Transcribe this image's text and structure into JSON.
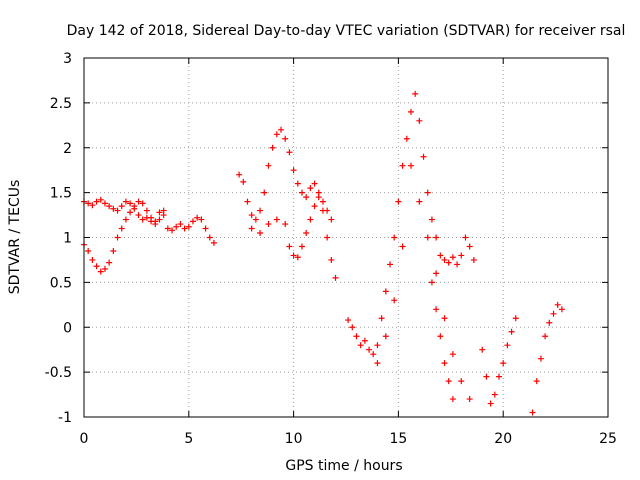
{
  "chart_data": {
    "type": "scatter",
    "title": "Day 142 of 2018, Sidereal Day-to-day VTEC variation (SDTVAR) for receiver rsal",
    "xlabel": "GPS time / hours",
    "ylabel": "SDTVAR / TECUs",
    "xlim": [
      0,
      25
    ],
    "ylim": [
      -1,
      3
    ],
    "xticks": [
      "0",
      "5",
      "10",
      "15",
      "20",
      "25"
    ],
    "yticks": [
      "-1",
      "-0.5",
      "0",
      "0.5",
      "1",
      "1.5",
      "2",
      "2.5",
      "3"
    ],
    "grid": true,
    "marker": "plus",
    "color": "#ff0000",
    "series": [
      {
        "name": "SDTVAR",
        "x": [
          0.0,
          0.2,
          0.4,
          0.6,
          0.8,
          1.0,
          1.2,
          1.4,
          1.6,
          1.8,
          2.0,
          2.2,
          2.4,
          2.6,
          2.8,
          3.0,
          3.2,
          3.4,
          3.6,
          3.8,
          4.0,
          4.2,
          4.4,
          4.6,
          4.8,
          5.0,
          5.2,
          5.4,
          5.6,
          5.8,
          6.0,
          6.2,
          0.0,
          0.2,
          0.4,
          0.6,
          0.8,
          1.0,
          1.2,
          1.4,
          1.6,
          1.8,
          2.0,
          2.2,
          2.4,
          2.6,
          2.8,
          3.0,
          3.2,
          3.4,
          3.6,
          3.8,
          7.4,
          7.6,
          7.8,
          8.0,
          8.2,
          8.4,
          8.6,
          8.8,
          9.0,
          9.2,
          9.4,
          9.6,
          9.8,
          10.0,
          10.2,
          10.4,
          10.6,
          10.8,
          11.0,
          11.2,
          11.4,
          11.6,
          11.8,
          12.0,
          8.0,
          8.4,
          8.8,
          9.2,
          9.6,
          9.8,
          10.0,
          10.2,
          10.4,
          10.6,
          10.8,
          11.0,
          11.2,
          11.4,
          11.6,
          11.8,
          12.6,
          12.8,
          13.0,
          13.2,
          13.4,
          13.6,
          13.8,
          14.0,
          14.2,
          14.4,
          14.6,
          14.8,
          15.0,
          15.2,
          15.4,
          15.6,
          15.8,
          16.0,
          16.2,
          16.4,
          16.6,
          16.8,
          17.0,
          17.2,
          17.4,
          17.6,
          17.8,
          18.0,
          18.2,
          18.4,
          18.6,
          14.0,
          14.4,
          14.8,
          15.2,
          15.6,
          16.0,
          16.4,
          16.8,
          17.2,
          17.6,
          18.0,
          18.4,
          16.6,
          16.8,
          17.0,
          17.2,
          17.4,
          17.6,
          19.0,
          19.2,
          19.4,
          19.6,
          19.8,
          20.0,
          20.2,
          20.4,
          20.6,
          21.4,
          21.6,
          21.8,
          22.0,
          22.2,
          22.4,
          22.6,
          22.8
        ],
        "y": [
          1.4,
          1.38,
          1.36,
          1.4,
          1.42,
          1.38,
          1.35,
          1.32,
          1.3,
          1.35,
          1.4,
          1.38,
          1.32,
          1.25,
          1.2,
          1.22,
          1.18,
          1.15,
          1.28,
          1.3,
          1.1,
          1.08,
          1.12,
          1.15,
          1.1,
          1.12,
          1.18,
          1.22,
          1.2,
          1.1,
          1.0,
          0.94,
          0.92,
          0.85,
          0.75,
          0.68,
          0.62,
          0.65,
          0.72,
          0.85,
          1.0,
          1.1,
          1.2,
          1.28,
          1.35,
          1.4,
          1.38,
          1.3,
          1.22,
          1.18,
          1.2,
          1.25,
          1.7,
          1.62,
          1.4,
          1.25,
          1.2,
          1.3,
          1.5,
          1.8,
          2.0,
          2.15,
          2.2,
          2.1,
          1.95,
          1.75,
          1.6,
          1.5,
          1.45,
          1.55,
          1.6,
          1.5,
          1.3,
          1.0,
          0.75,
          0.55,
          1.1,
          1.05,
          1.15,
          1.2,
          1.15,
          0.9,
          0.8,
          0.78,
          0.9,
          1.05,
          1.2,
          1.35,
          1.45,
          1.4,
          1.3,
          1.2,
          0.08,
          0.0,
          -0.1,
          -0.2,
          -0.15,
          -0.25,
          -0.3,
          -0.2,
          0.1,
          0.4,
          0.7,
          1.0,
          1.4,
          1.8,
          2.1,
          2.4,
          2.6,
          2.3,
          1.9,
          1.5,
          1.2,
          1.0,
          0.8,
          0.75,
          0.72,
          0.78,
          0.7,
          0.8,
          1.0,
          0.9,
          0.75,
          -0.4,
          -0.1,
          0.3,
          0.9,
          1.8,
          1.4,
          1.0,
          0.6,
          0.1,
          -0.3,
          -0.6,
          -0.8,
          0.5,
          0.2,
          -0.1,
          -0.4,
          -0.6,
          -0.8,
          -0.25,
          -0.55,
          -0.85,
          -0.75,
          -0.55,
          -0.4,
          -0.2,
          -0.05,
          0.1,
          -0.95,
          -0.6,
          -0.35,
          -0.1,
          0.05,
          0.15,
          0.25,
          0.2
        ]
      }
    ]
  }
}
